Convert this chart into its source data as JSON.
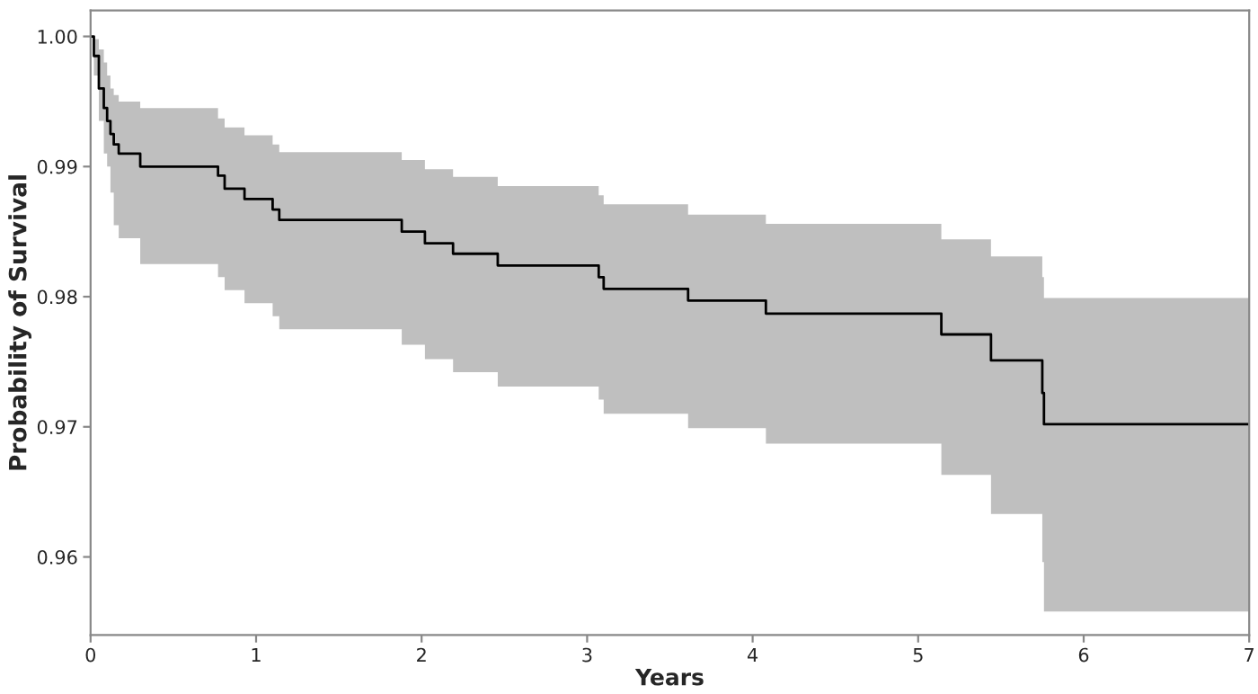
{
  "chart_data": {
    "type": "step",
    "xlabel": "Years",
    "ylabel": "Probability of Survival",
    "xlim": [
      0,
      7
    ],
    "ylim": [
      0.954,
      1.002
    ],
    "xticks": [
      0,
      1,
      2,
      3,
      4,
      5,
      6,
      7
    ],
    "yticks": [
      {
        "value": 0.96,
        "label": "0.96"
      },
      {
        "value": 0.97,
        "label": "0.97"
      },
      {
        "value": 0.98,
        "label": "0.98"
      },
      {
        "value": 0.99,
        "label": "0.99"
      },
      {
        "value": 1.0,
        "label": "1.00"
      }
    ],
    "grid": false,
    "series": [
      {
        "color": "#000000",
        "x": [
          0,
          0.02,
          0.05,
          0.08,
          0.1,
          0.12,
          0.14,
          0.17,
          0.3,
          0.77,
          0.81,
          0.93,
          1.1,
          1.14,
          1.88,
          2.02,
          2.19,
          2.46,
          3.07,
          3.1,
          3.61,
          4.08,
          5.14,
          5.44,
          5.75,
          5.76,
          7
        ],
        "values": [
          1.0,
          0.9985,
          0.996,
          0.9945,
          0.9935,
          0.9925,
          0.9917,
          0.991,
          0.99,
          0.9893,
          0.9883,
          0.9875,
          0.9867,
          0.9859,
          0.985,
          0.9841,
          0.9833,
          0.9824,
          0.9815,
          0.9806,
          0.9797,
          0.9787,
          0.9771,
          0.9751,
          0.9726,
          0.9702,
          0.9702
        ],
        "lower": [
          1.0,
          0.997,
          0.9935,
          0.991,
          0.99,
          0.988,
          0.9855,
          0.9845,
          0.9825,
          0.9815,
          0.9805,
          0.9795,
          0.9785,
          0.9775,
          0.9763,
          0.9752,
          0.9742,
          0.9731,
          0.9721,
          0.971,
          0.9699,
          0.9687,
          0.9663,
          0.9633,
          0.9596,
          0.9558,
          0.9558
        ],
        "upper": [
          1.0,
          0.9998,
          0.999,
          0.998,
          0.997,
          0.996,
          0.9955,
          0.995,
          0.9945,
          0.9937,
          0.993,
          0.9924,
          0.9917,
          0.9911,
          0.9905,
          0.9898,
          0.9892,
          0.9885,
          0.9878,
          0.9871,
          0.9863,
          0.9856,
          0.9844,
          0.9831,
          0.9815,
          0.9799,
          0.9799
        ]
      }
    ]
  }
}
